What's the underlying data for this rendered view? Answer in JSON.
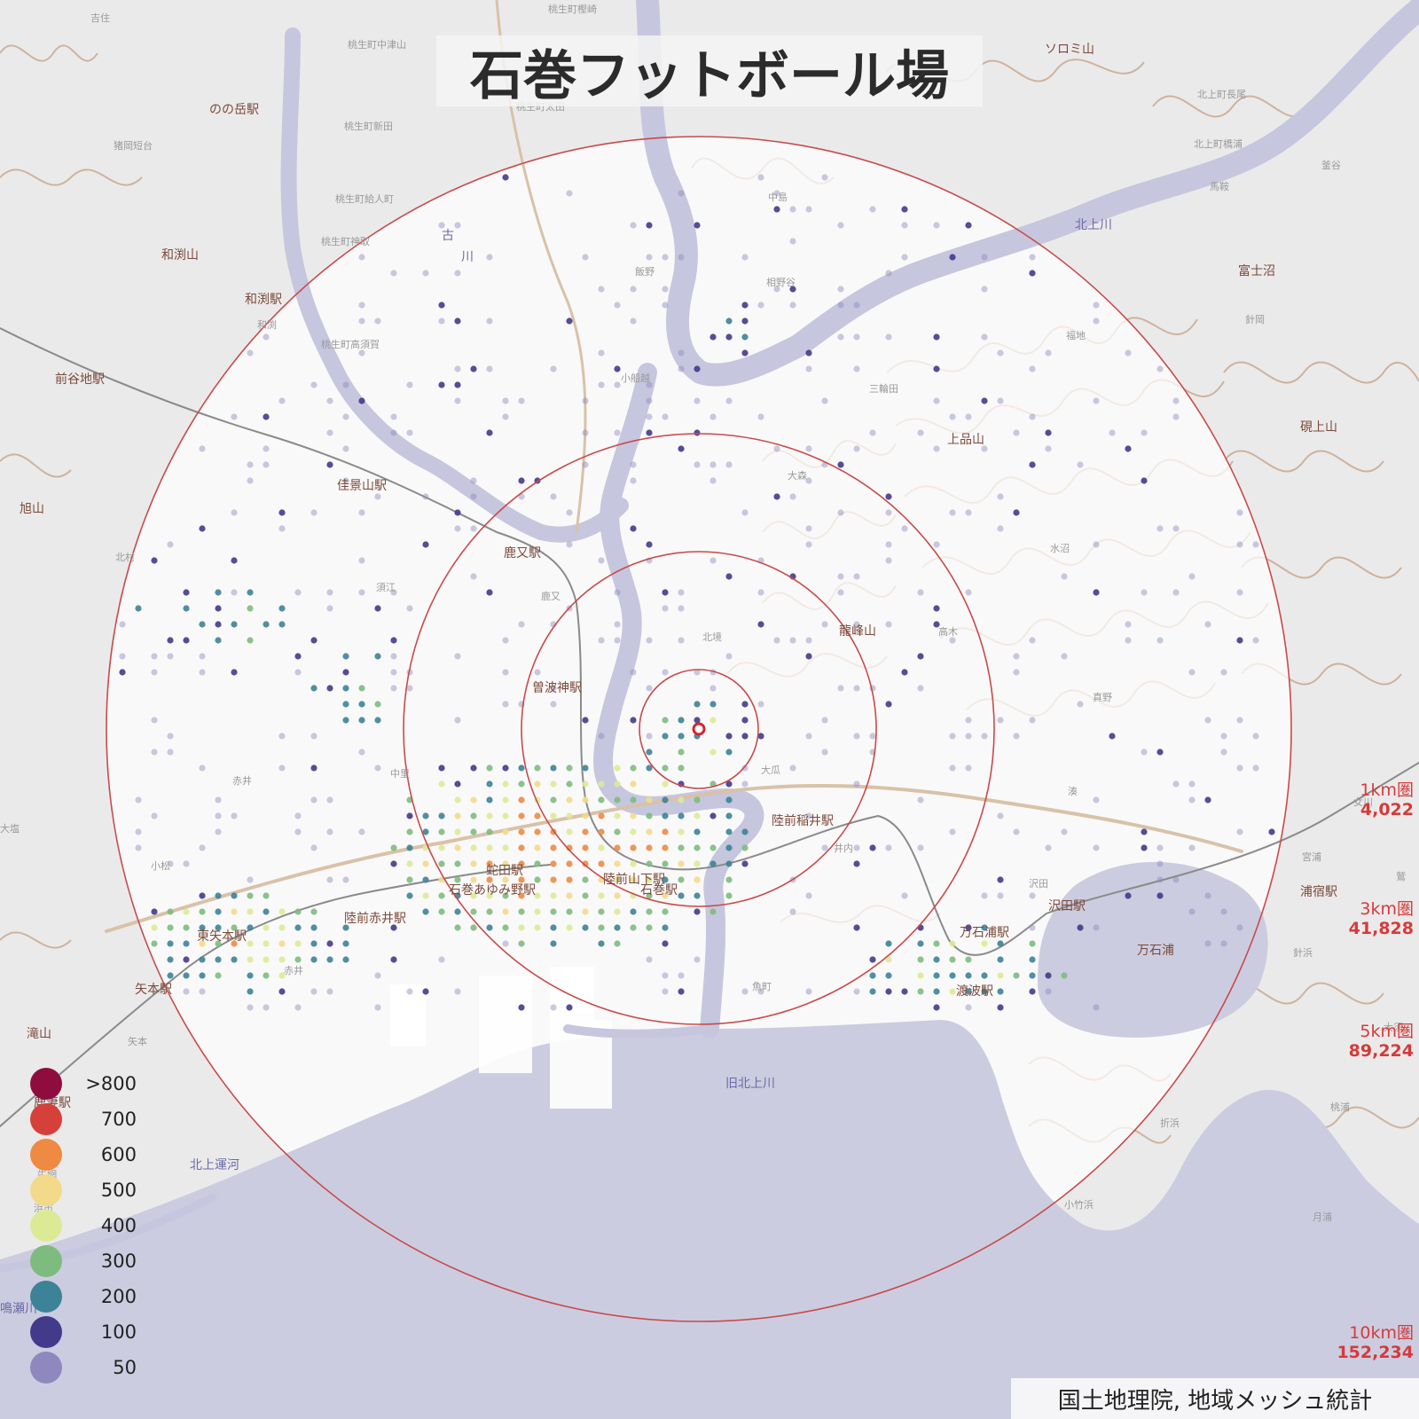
{
  "title": "石巻フットボール場",
  "rings": [
    {
      "label": "1km圏",
      "population": "4,022"
    },
    {
      "label": "3km圏",
      "population": "41,828"
    },
    {
      "label": "5km圏",
      "population": "89,224"
    },
    {
      "label": "10km圏",
      "population": "152,234"
    }
  ],
  "legend": [
    {
      "label": ">800",
      "color": "#8e0d3e"
    },
    {
      "label": "700",
      "color": "#d6403a"
    },
    {
      "label": "600",
      "color": "#ee8a42"
    },
    {
      "label": "500",
      "color": "#f3d98a"
    },
    {
      "label": "400",
      "color": "#dcea96"
    },
    {
      "label": "300",
      "color": "#7dbb7f"
    },
    {
      "label": "200",
      "color": "#3c8397"
    },
    {
      "label": "100",
      "color": "#433a8c"
    },
    {
      "label": "50",
      "color": "#8e88be"
    }
  ],
  "credit": "国土地理院, 地域メッシュ統計",
  "colors": {
    "ring": "#c94a4a",
    "sea": "#cccce0",
    "river": "#c6c6de",
    "land": "#ebeaea",
    "contour": "#c9a98f",
    "center": "#d2272f"
  },
  "stations": [
    "のの岳駅",
    "和渕駅",
    "前谷地駅",
    "佳景山駅",
    "鹿又駅",
    "曽波神駅",
    "蛇田駅",
    "石巻あゆみ野駅",
    "陸前山下駅",
    "石巻駅",
    "陸前稲井駅",
    "陸前赤井駅",
    "東矢本駅",
    "矢本駅",
    "万石浦駅",
    "沢田駅",
    "浦宿駅",
    "渡波駅",
    "鹿妻駅"
  ],
  "mountains": [
    "和渕山",
    "旭山",
    "滝山",
    "ソロミ山",
    "富士沼",
    "上品山",
    "硯上山",
    "龍峰山",
    "万石浦"
  ],
  "rivers": [
    "古",
    "川",
    "北上川",
    "旧北上川",
    "北上運河",
    "鳴瀬川"
  ],
  "districts": [
    "桃生町樫崎",
    "桃生町中津山",
    "桃生町太田",
    "桃生町新田",
    "桃生町給人町",
    "桃生町神取",
    "桃生町高須賀",
    "猪岡短台",
    "吉住",
    "北上町長尾",
    "北上町橋浦",
    "釜谷",
    "中島",
    "相野谷",
    "飯野",
    "小船越",
    "三輪田",
    "福地",
    "大森",
    "北村",
    "須江",
    "鹿又",
    "北境",
    "高木",
    "真野",
    "大瓜",
    "赤井",
    "中里",
    "井内",
    "沢田",
    "針岡",
    "馬鞍",
    "水沼",
    "針浜",
    "折浜",
    "小竹浜",
    "月浦",
    "桃浦",
    "大須",
    "湊",
    "魚町",
    "宮浦",
    "鷲",
    "女川",
    "浜市",
    "牛網",
    "小松",
    "矢本",
    "大塩",
    "赤井",
    "和渕"
  ]
}
